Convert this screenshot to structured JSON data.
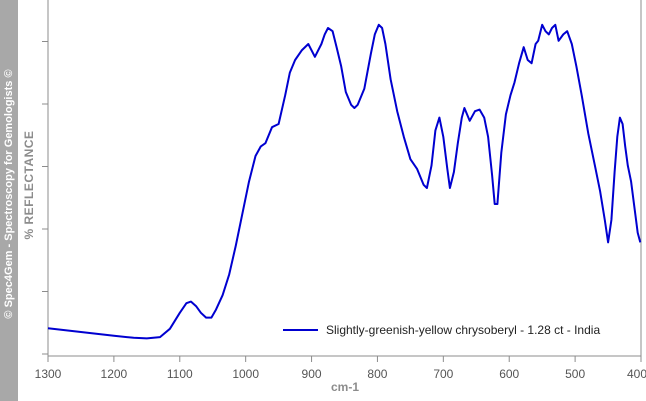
{
  "watermark": "© Spec4Gem - Spectroscopy for Gemologists ©",
  "chart_data": {
    "type": "line",
    "title": "",
    "xlabel": "cm-1",
    "ylabel": "% REFLECTANCE",
    "xlim": [
      1300,
      400
    ],
    "x_reversed": true,
    "ylim": [
      0,
      1
    ],
    "y_ticks_unlabeled": true,
    "x_ticks": [
      1300,
      1200,
      1100,
      1000,
      900,
      800,
      700,
      600,
      500,
      400
    ],
    "x_tick_labels": [
      "1300",
      "1200",
      "1100",
      "1000",
      "900",
      "800",
      "700",
      "600",
      "500",
      "400"
    ],
    "grid": false,
    "legend_position": "bottom-right",
    "colors": {
      "series": "#0000d0",
      "axis": "#8c8c8c",
      "side_band": "#a8a8a8"
    },
    "series": [
      {
        "name": "Slightly-greenish-yellow chrysoberyl - 1.28 ct - India",
        "x": [
          1300,
          1250,
          1200,
          1170,
          1150,
          1130,
          1115,
          1100,
          1090,
          1083,
          1075,
          1068,
          1060,
          1052,
          1045,
          1035,
          1025,
          1015,
          1005,
          995,
          985,
          977,
          970,
          960,
          950,
          940,
          933,
          925,
          915,
          905,
          895,
          885,
          880,
          875,
          868,
          862,
          855,
          848,
          840,
          835,
          830,
          820,
          810,
          804,
          798,
          793,
          788,
          780,
          770,
          760,
          750,
          740,
          730,
          725,
          718,
          712,
          706,
          700,
          694,
          690,
          684,
          678,
          672,
          668,
          660,
          652,
          645,
          638,
          632,
          626,
          622,
          618,
          612,
          605,
          598,
          592,
          585,
          578,
          572,
          566,
          560,
          556,
          550,
          545,
          540,
          535,
          530,
          525,
          518,
          512,
          505,
          498,
          490,
          480,
          470,
          462,
          455,
          450,
          445,
          440,
          436,
          432,
          428,
          424,
          420,
          415,
          410,
          405,
          401
        ],
        "values": [
          0.062,
          0.05,
          0.038,
          0.032,
          0.03,
          0.034,
          0.06,
          0.11,
          0.14,
          0.145,
          0.13,
          0.11,
          0.095,
          0.095,
          0.12,
          0.165,
          0.23,
          0.32,
          0.42,
          0.52,
          0.6,
          0.63,
          0.64,
          0.69,
          0.7,
          0.79,
          0.86,
          0.9,
          0.93,
          0.95,
          0.91,
          0.95,
          0.98,
          1.0,
          0.99,
          0.94,
          0.88,
          0.8,
          0.76,
          0.75,
          0.76,
          0.81,
          0.92,
          0.98,
          1.01,
          1.0,
          0.95,
          0.84,
          0.74,
          0.66,
          0.59,
          0.56,
          0.51,
          0.5,
          0.57,
          0.68,
          0.72,
          0.66,
          0.56,
          0.5,
          0.55,
          0.64,
          0.72,
          0.75,
          0.71,
          0.74,
          0.745,
          0.72,
          0.66,
          0.54,
          0.45,
          0.45,
          0.61,
          0.73,
          0.79,
          0.83,
          0.89,
          0.94,
          0.9,
          0.89,
          0.95,
          0.96,
          1.01,
          0.99,
          0.98,
          1.0,
          1.01,
          0.96,
          0.98,
          0.99,
          0.95,
          0.88,
          0.79,
          0.67,
          0.57,
          0.49,
          0.4,
          0.33,
          0.4,
          0.55,
          0.66,
          0.72,
          0.7,
          0.63,
          0.57,
          0.52,
          0.44,
          0.36,
          0.33
        ]
      }
    ]
  }
}
